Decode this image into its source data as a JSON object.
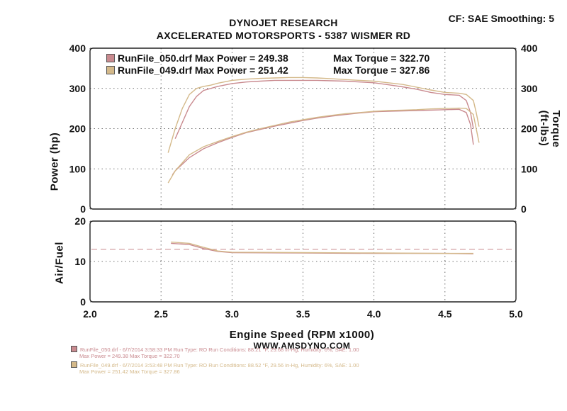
{
  "header": {
    "title": "DYNOJET RESEARCH",
    "subtitle": "AXCELERATED MOTORSPORTS  - 5387 WISMER RD",
    "conditions": "CF: SAE  Smoothing: 5"
  },
  "colors": {
    "run050": "#c98a8f",
    "run049": "#d4b98a",
    "ref_line": "#c98a8f"
  },
  "legend": [
    {
      "file": "RunFile_050.drf",
      "max_power_label": "Max Power = 249.38",
      "max_torque_label": "Max Torque = 322.70",
      "color": "#c98a8f"
    },
    {
      "file": "RunFile_049.drf",
      "max_power_label": "Max Power = 251.42",
      "max_torque_label": "Max Torque = 327.86",
      "color": "#d4b98a"
    }
  ],
  "footer": {
    "website": "WWW.AMSDYNO.COM",
    "runs": [
      {
        "line1": "RunFile_050.drf - 6/7/2014 3:58:33 PM  Run Type: RO  Run Conditions: 88.21 °F, 29.68 in-Hg,  Humidity:  6%, SAE: 1.00",
        "line2": "Max Power = 249.38   Max Torque = 322.70",
        "color": "#c98a8f"
      },
      {
        "line1": "RunFile_049.drf - 6/7/2014 3:53:48 PM  Run Type: RO  Run Conditions: 88.52 °F, 29.56 in-Hg,  Humidity:  6%, SAE: 1.00",
        "line2": "Max Power = 251.42   Max Torque = 327.86",
        "color": "#d4b98a"
      }
    ]
  },
  "chart_data": [
    {
      "type": "line",
      "xlabel": "Engine Speed (RPM x1000)",
      "ylabel": "Power (hp)",
      "y2label": "Torque (ft-lbs)",
      "xlim": [
        2.0,
        5.0
      ],
      "ylim": [
        0,
        400
      ],
      "y2lim": [
        0,
        400
      ],
      "xticks": [
        "2.0",
        "2.5",
        "3.0",
        "3.5",
        "4.0",
        "4.5",
        "5.0"
      ],
      "yticks": [
        "0",
        "100",
        "200",
        "300",
        "400"
      ],
      "y2ticks": [
        "0",
        "100",
        "200",
        "300",
        "400"
      ],
      "grid": true,
      "series": [
        {
          "name": "RunFile_050.drf",
          "quantity": "Torque",
          "axis": "right",
          "x": [
            2.6,
            2.65,
            2.7,
            2.75,
            2.8,
            2.85,
            2.9,
            3.0,
            3.1,
            3.2,
            3.3,
            3.4,
            3.5,
            3.6,
            3.7,
            3.8,
            3.9,
            4.0,
            4.1,
            4.2,
            4.3,
            4.4,
            4.5,
            4.6,
            4.65,
            4.68,
            4.7
          ],
          "y": [
            175,
            215,
            255,
            280,
            295,
            300,
            305,
            312,
            316,
            318,
            320,
            320,
            320,
            320,
            319,
            318,
            316,
            314,
            309,
            304,
            298,
            290,
            285,
            283,
            270,
            240,
            200
          ]
        },
        {
          "name": "RunFile_049.drf",
          "quantity": "Torque",
          "axis": "right",
          "x": [
            2.55,
            2.6,
            2.65,
            2.7,
            2.75,
            2.8,
            2.85,
            2.9,
            3.0,
            3.1,
            3.2,
            3.3,
            3.4,
            3.5,
            3.6,
            3.7,
            3.8,
            3.9,
            4.0,
            4.1,
            4.2,
            4.3,
            4.4,
            4.5,
            4.6,
            4.65,
            4.7,
            4.72,
            4.74
          ],
          "y": [
            140,
            200,
            250,
            285,
            300,
            305,
            308,
            313,
            320,
            323,
            325,
            326,
            327,
            327,
            326,
            324,
            322,
            320,
            318,
            314,
            310,
            303,
            296,
            290,
            288,
            285,
            270,
            240,
            205
          ]
        },
        {
          "name": "RunFile_050.drf",
          "quantity": "Power",
          "axis": "left",
          "x": [
            2.58,
            2.6,
            2.7,
            2.8,
            2.9,
            3.0,
            3.1,
            3.2,
            3.3,
            3.4,
            3.5,
            3.6,
            3.7,
            3.8,
            3.9,
            4.0,
            4.1,
            4.2,
            4.3,
            4.4,
            4.5,
            4.6,
            4.65,
            4.68,
            4.7
          ],
          "y": [
            85,
            95,
            128,
            150,
            165,
            178,
            190,
            198,
            206,
            213,
            220,
            226,
            231,
            235,
            239,
            242,
            243,
            244,
            245,
            246,
            247,
            248,
            240,
            210,
            160
          ]
        },
        {
          "name": "RunFile_049.drf",
          "quantity": "Power",
          "axis": "left",
          "x": [
            2.55,
            2.6,
            2.7,
            2.8,
            2.9,
            3.0,
            3.1,
            3.2,
            3.3,
            3.4,
            3.5,
            3.6,
            3.7,
            3.8,
            3.9,
            4.0,
            4.1,
            4.2,
            4.3,
            4.4,
            4.5,
            4.6,
            4.65,
            4.7,
            4.72,
            4.74
          ],
          "y": [
            65,
            95,
            135,
            155,
            168,
            180,
            191,
            200,
            208,
            216,
            222,
            228,
            233,
            237,
            240,
            243,
            245,
            246,
            247,
            249,
            250,
            251,
            250,
            235,
            200,
            165
          ]
        }
      ]
    },
    {
      "type": "line",
      "xlabel": "Engine Speed (RPM x1000)",
      "ylabel": "Air/Fuel",
      "xlim": [
        2.0,
        5.0
      ],
      "ylim": [
        0,
        20
      ],
      "xticks": [
        "2.0",
        "2.5",
        "3.0",
        "3.5",
        "4.0",
        "4.5",
        "5.0"
      ],
      "yticks": [
        "0",
        "10",
        "20"
      ],
      "grid": true,
      "reference_line": 13,
      "series": [
        {
          "name": "RunFile_050.drf",
          "x": [
            2.57,
            2.7,
            2.8,
            2.9,
            3.0,
            3.5,
            4.0,
            4.5,
            4.7
          ],
          "y": [
            14.5,
            14.2,
            13.2,
            12.5,
            12.2,
            12.1,
            12.0,
            12.0,
            11.9
          ]
        },
        {
          "name": "RunFile_049.drf",
          "x": [
            2.57,
            2.7,
            2.8,
            2.9,
            3.0,
            3.5,
            4.0,
            4.5,
            4.7
          ],
          "y": [
            14.8,
            14.5,
            13.5,
            12.6,
            12.3,
            12.2,
            12.1,
            12.0,
            12.0
          ]
        }
      ]
    }
  ]
}
